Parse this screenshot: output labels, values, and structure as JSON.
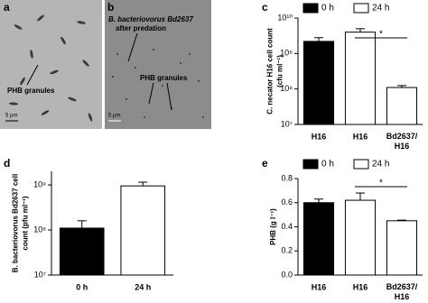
{
  "images": [
    {
      "panel": "a",
      "labels": [
        "PHB granules",
        "5 µm"
      ]
    },
    {
      "panel": "b",
      "labels": [
        "B. bacteriovorus Bd2637",
        "after predation",
        "PHB granules",
        "5 µm"
      ]
    }
  ],
  "chart_data": [
    {
      "type": "bar",
      "panel": "c",
      "log_scale": true,
      "ylabel": [
        "C. necator H16 cell count",
        "(cfu ml⁻¹)"
      ],
      "categories": [
        "H16",
        "H16",
        "Bd2637/\nH16"
      ],
      "series": [
        {
          "name": "0 h",
          "color": "#000000",
          "values": [
            2200000000,
            null,
            null
          ],
          "errors": [
            600000000,
            null,
            null
          ]
        },
        {
          "name": "24 h",
          "color": "#ffffff",
          "values": [
            null,
            4000000000,
            110000000
          ],
          "errors": [
            null,
            1000000000,
            15000000
          ]
        }
      ],
      "ylim": [
        10000000,
        10000000000
      ],
      "yticks": [
        {
          "value": 10000000,
          "label": "10⁷"
        },
        {
          "value": 100000000,
          "label": "10⁸"
        },
        {
          "value": 1000000000,
          "label": "10⁹"
        },
        {
          "value": 10000000000,
          "label": "10¹⁰"
        }
      ],
      "significance": "*"
    },
    {
      "type": "bar",
      "panel": "d",
      "log_scale": true,
      "ylabel": [
        "B. bacteriovorus Bd2637 cell",
        "count (pfu ml⁻¹)"
      ],
      "categories": [
        "0 h",
        "24 h"
      ],
      "series": [
        {
          "color": "#000000",
          "values": [
            110000000,
            null
          ],
          "errors": [
            50000000,
            null
          ]
        },
        {
          "color": "#ffffff",
          "values": [
            null,
            950000000
          ],
          "errors": [
            null,
            200000000
          ]
        }
      ],
      "ylim": [
        10000000,
        2000000000
      ],
      "yticks": [
        {
          "value": 10000000,
          "label": "10⁷"
        },
        {
          "value": 100000000,
          "label": "10⁸"
        },
        {
          "value": 1000000000,
          "label": "10⁹"
        }
      ]
    },
    {
      "type": "bar",
      "panel": "e",
      "log_scale": false,
      "ylabel": [
        "PHB (g l⁻¹)"
      ],
      "categories": [
        "H16",
        "H16",
        "Bd2637/\nH16"
      ],
      "series": [
        {
          "name": "0 h",
          "color": "#000000",
          "values": [
            0.6,
            null,
            null
          ],
          "errors": [
            0.03,
            null,
            null
          ]
        },
        {
          "name": "24 h",
          "color": "#ffffff",
          "values": [
            null,
            0.62,
            0.45
          ],
          "errors": [
            null,
            0.06,
            0.005
          ]
        }
      ],
      "ylim": [
        0,
        0.8
      ],
      "yticks": [
        {
          "value": 0,
          "label": "0.0"
        },
        {
          "value": 0.2,
          "label": "0.2"
        },
        {
          "value": 0.4,
          "label": "0.4"
        },
        {
          "value": 0.6,
          "label": "0.6"
        },
        {
          "value": 0.8,
          "label": "0.8"
        }
      ],
      "significance": "*"
    }
  ]
}
